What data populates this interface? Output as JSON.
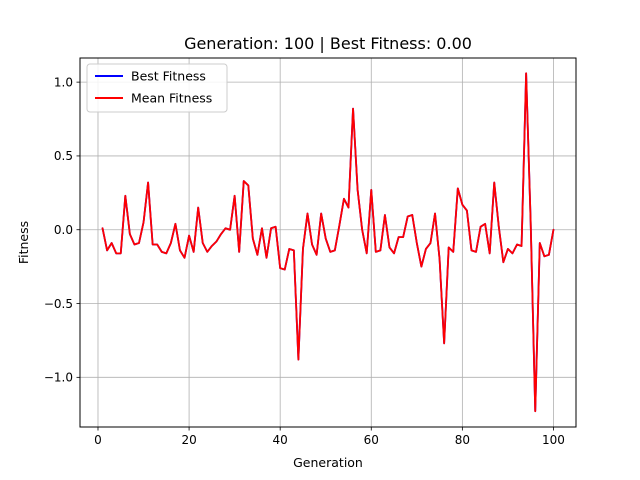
{
  "chart_data": {
    "type": "line",
    "title": "Generation: 100 | Best Fitness: 0.00",
    "xlabel": "Generation",
    "ylabel": "Fitness",
    "xlim": [
      -3.95,
      104.95
    ],
    "ylim": [
      -1.3365,
      1.1635
    ],
    "xticks": [
      0,
      20,
      40,
      60,
      80,
      100
    ],
    "xtick_labels": [
      "0",
      "20",
      "40",
      "60",
      "80",
      "100"
    ],
    "yticks": [
      -1.0,
      -0.5,
      0.0,
      0.5,
      1.0
    ],
    "ytick_labels": [
      "−1.0",
      "−0.5",
      "0.0",
      "0.5",
      "1.0"
    ],
    "grid": true,
    "legend_position": "top-left",
    "x": [
      1,
      2,
      3,
      4,
      5,
      6,
      7,
      8,
      9,
      10,
      11,
      12,
      13,
      14,
      15,
      16,
      17,
      18,
      19,
      20,
      21,
      22,
      23,
      24,
      25,
      26,
      27,
      28,
      29,
      30,
      31,
      32,
      33,
      34,
      35,
      36,
      37,
      38,
      39,
      40,
      41,
      42,
      43,
      44,
      45,
      46,
      47,
      48,
      49,
      50,
      51,
      52,
      53,
      54,
      55,
      56,
      57,
      58,
      59,
      60,
      61,
      62,
      63,
      64,
      65,
      66,
      67,
      68,
      69,
      70,
      71,
      72,
      73,
      74,
      75,
      76,
      77,
      78,
      79,
      80,
      81,
      82,
      83,
      84,
      85,
      86,
      87,
      88,
      89,
      90,
      91,
      92,
      93,
      94,
      95,
      96,
      97,
      98,
      99,
      100
    ],
    "series": [
      {
        "name": "Best Fitness",
        "color": "#0000ff",
        "values": [
          0.01,
          -0.14,
          -0.09,
          -0.16,
          -0.16,
          0.23,
          -0.03,
          -0.1,
          -0.09,
          0.05,
          0.32,
          -0.1,
          -0.1,
          -0.15,
          -0.16,
          -0.09,
          0.04,
          -0.14,
          -0.19,
          -0.04,
          -0.15,
          0.15,
          -0.09,
          -0.15,
          -0.11,
          -0.08,
          -0.03,
          0.01,
          0.0,
          0.23,
          -0.15,
          0.33,
          0.3,
          -0.06,
          -0.17,
          0.01,
          -0.19,
          0.01,
          0.02,
          -0.26,
          -0.27,
          -0.13,
          -0.14,
          -0.88,
          -0.13,
          0.11,
          -0.1,
          -0.17,
          0.11,
          -0.06,
          -0.15,
          -0.14,
          0.03,
          0.21,
          0.15,
          0.82,
          0.27,
          0.0,
          -0.16,
          0.27,
          -0.15,
          -0.14,
          0.1,
          -0.12,
          -0.16,
          -0.05,
          -0.05,
          0.09,
          0.1,
          -0.09,
          -0.25,
          -0.13,
          -0.09,
          0.11,
          -0.2,
          -0.77,
          -0.12,
          -0.15,
          0.28,
          0.17,
          0.13,
          -0.14,
          -0.15,
          0.02,
          0.04,
          -0.16,
          0.32,
          0.02,
          -0.22,
          -0.13,
          -0.16,
          -0.1,
          -0.11,
          1.06,
          0.05,
          -1.23,
          -0.09,
          -0.18,
          -0.17,
          0.0
        ]
      },
      {
        "name": "Mean Fitness",
        "color": "#ff0000",
        "values": [
          0.01,
          -0.14,
          -0.09,
          -0.16,
          -0.16,
          0.23,
          -0.03,
          -0.1,
          -0.09,
          0.05,
          0.32,
          -0.1,
          -0.1,
          -0.15,
          -0.16,
          -0.09,
          0.04,
          -0.14,
          -0.19,
          -0.04,
          -0.15,
          0.15,
          -0.09,
          -0.15,
          -0.11,
          -0.08,
          -0.03,
          0.01,
          0.0,
          0.23,
          -0.15,
          0.33,
          0.3,
          -0.06,
          -0.17,
          0.01,
          -0.19,
          0.01,
          0.02,
          -0.26,
          -0.27,
          -0.13,
          -0.14,
          -0.88,
          -0.13,
          0.11,
          -0.1,
          -0.17,
          0.11,
          -0.06,
          -0.15,
          -0.14,
          0.03,
          0.21,
          0.15,
          0.82,
          0.27,
          0.0,
          -0.16,
          0.27,
          -0.15,
          -0.14,
          0.1,
          -0.12,
          -0.16,
          -0.05,
          -0.05,
          0.09,
          0.1,
          -0.09,
          -0.25,
          -0.13,
          -0.09,
          0.11,
          -0.2,
          -0.77,
          -0.12,
          -0.15,
          0.28,
          0.17,
          0.13,
          -0.14,
          -0.15,
          0.02,
          0.04,
          -0.16,
          0.32,
          0.02,
          -0.22,
          -0.13,
          -0.16,
          -0.1,
          -0.11,
          1.06,
          0.05,
          -1.23,
          -0.09,
          -0.18,
          -0.17,
          0.0
        ]
      }
    ]
  }
}
